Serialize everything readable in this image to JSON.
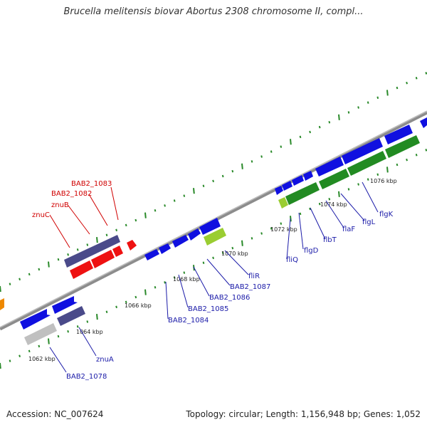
{
  "title": "Brucella melitensis biovar Abortus 2308 chromosome II, compl...",
  "footer": {
    "accession": "Accession: NC_007624",
    "summary": "Topology: circular; Length: 1,156,948 bp; Genes: 1,052"
  },
  "colors": {
    "backbone": "#999999",
    "tick": "#2a8a2a",
    "label_red": "#d00000",
    "label_blue": "#1a1aa8",
    "gene_blue": "#1010e0",
    "gene_navy": "#4a4a8a",
    "gene_red": "#ee1111",
    "gene_green": "#228b22",
    "gene_lightgreen": "#9acd32",
    "gene_gray": "#bbbbbb",
    "gene_orange": "#ee8800"
  },
  "scale_labels": [
    "1062 kbp",
    "1064 kbp",
    "1066 kbp",
    "1068 kbp",
    "1070 kbp",
    "1072 kbp",
    "1074 kbp",
    "1076 kbp"
  ],
  "gene_labels_red": [
    "BAB2_1083",
    "BAB2_1082",
    "znuB",
    "znuC"
  ],
  "gene_labels_blue": [
    "znuA",
    "BAB2_1078",
    "BAB2_1084",
    "BAB2_1085",
    "BAB2_1086",
    "BAB2_1087",
    "fliR",
    "fliQ",
    "flgD",
    "flbT",
    "flaF",
    "flgL",
    "flgK"
  ]
}
